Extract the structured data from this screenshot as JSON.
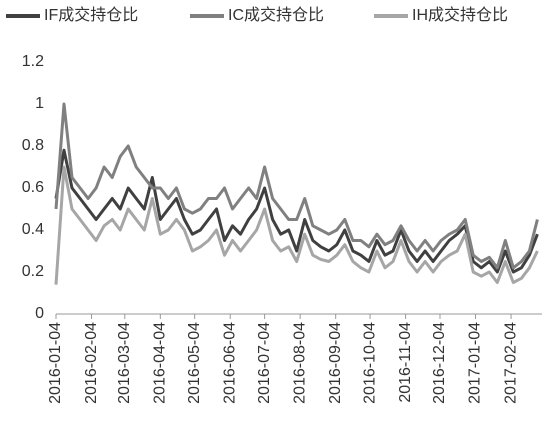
{
  "chart_data": {
    "type": "line",
    "x": [
      "2016-01-04",
      "2016-01-11",
      "2016-01-18",
      "2016-01-25",
      "2016-02-01",
      "2016-02-08",
      "2016-02-15",
      "2016-02-22",
      "2016-02-29",
      "2016-03-07",
      "2016-03-14",
      "2016-03-21",
      "2016-03-28",
      "2016-04-04",
      "2016-04-11",
      "2016-04-18",
      "2016-04-25",
      "2016-05-02",
      "2016-05-09",
      "2016-05-16",
      "2016-05-23",
      "2016-05-30",
      "2016-06-06",
      "2016-06-13",
      "2016-06-20",
      "2016-06-27",
      "2016-07-04",
      "2016-07-11",
      "2016-07-18",
      "2016-07-25",
      "2016-08-01",
      "2016-08-08",
      "2016-08-15",
      "2016-08-22",
      "2016-08-29",
      "2016-09-05",
      "2016-09-12",
      "2016-09-19",
      "2016-09-26",
      "2016-10-03",
      "2016-10-10",
      "2016-10-17",
      "2016-10-24",
      "2016-10-31",
      "2016-11-07",
      "2016-11-14",
      "2016-11-21",
      "2016-11-28",
      "2016-12-05",
      "2016-12-12",
      "2016-12-19",
      "2016-12-26",
      "2017-01-02",
      "2017-01-09",
      "2017-01-16",
      "2017-01-23",
      "2017-01-30",
      "2017-02-06",
      "2017-02-13",
      "2017-02-20",
      "2017-02-27"
    ],
    "series": [
      {
        "name": "IF成交持仓比",
        "color": "#404040",
        "values": [
          0.55,
          0.78,
          0.6,
          0.55,
          0.5,
          0.45,
          0.5,
          0.55,
          0.5,
          0.6,
          0.55,
          0.5,
          0.65,
          0.45,
          0.5,
          0.55,
          0.45,
          0.38,
          0.4,
          0.45,
          0.5,
          0.35,
          0.42,
          0.38,
          0.45,
          0.5,
          0.6,
          0.45,
          0.38,
          0.4,
          0.3,
          0.45,
          0.35,
          0.32,
          0.3,
          0.33,
          0.4,
          0.3,
          0.28,
          0.25,
          0.35,
          0.28,
          0.3,
          0.4,
          0.3,
          0.25,
          0.3,
          0.25,
          0.3,
          0.35,
          0.38,
          0.42,
          0.25,
          0.22,
          0.25,
          0.2,
          0.3,
          0.2,
          0.22,
          0.28,
          0.38
        ]
      },
      {
        "name": "IC成交持仓比",
        "color": "#808080",
        "values": [
          0.5,
          1.0,
          0.65,
          0.6,
          0.55,
          0.6,
          0.7,
          0.65,
          0.75,
          0.8,
          0.7,
          0.65,
          0.6,
          0.6,
          0.55,
          0.6,
          0.5,
          0.48,
          0.5,
          0.55,
          0.55,
          0.6,
          0.5,
          0.55,
          0.6,
          0.55,
          0.7,
          0.55,
          0.5,
          0.45,
          0.45,
          0.55,
          0.42,
          0.4,
          0.38,
          0.4,
          0.45,
          0.35,
          0.35,
          0.32,
          0.38,
          0.33,
          0.35,
          0.42,
          0.35,
          0.3,
          0.35,
          0.3,
          0.35,
          0.38,
          0.4,
          0.45,
          0.28,
          0.25,
          0.27,
          0.22,
          0.35,
          0.22,
          0.25,
          0.3,
          0.45
        ]
      },
      {
        "name": "IH成交持仓比",
        "color": "#a6a6a6",
        "values": [
          0.14,
          0.7,
          0.5,
          0.45,
          0.4,
          0.35,
          0.42,
          0.45,
          0.4,
          0.5,
          0.45,
          0.4,
          0.55,
          0.38,
          0.4,
          0.45,
          0.4,
          0.3,
          0.32,
          0.35,
          0.4,
          0.28,
          0.35,
          0.3,
          0.35,
          0.4,
          0.5,
          0.35,
          0.3,
          0.32,
          0.25,
          0.38,
          0.28,
          0.26,
          0.25,
          0.28,
          0.33,
          0.25,
          0.22,
          0.2,
          0.3,
          0.22,
          0.25,
          0.35,
          0.25,
          0.2,
          0.25,
          0.2,
          0.25,
          0.28,
          0.3,
          0.38,
          0.2,
          0.18,
          0.2,
          0.15,
          0.25,
          0.15,
          0.17,
          0.22,
          0.3
        ]
      }
    ],
    "xlim": [
      "2016-01-04",
      "2017-03-03"
    ],
    "xticks": [
      "2016-01-04",
      "2016-02-04",
      "2016-03-04",
      "2016-04-04",
      "2016-05-04",
      "2016-06-04",
      "2016-07-04",
      "2016-08-04",
      "2016-09-04",
      "2016-10-04",
      "2016-11-04",
      "2016-12-04",
      "2017-01-04",
      "2017-02-04"
    ],
    "ylim": [
      0,
      1.2
    ],
    "yticks": [
      0,
      0.2,
      0.4,
      0.6,
      0.8,
      1,
      1.2
    ],
    "grid": false
  }
}
